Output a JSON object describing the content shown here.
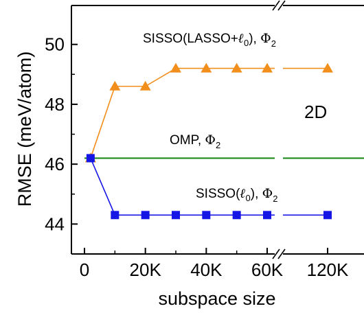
{
  "chart_data": {
    "type": "line",
    "xlabel": "subspace size",
    "ylabel": "RMSE (meV/atom)",
    "x_tick_labels": [
      "0",
      "20K",
      "40K",
      "60K",
      "120K"
    ],
    "y_tick_labels": [
      "44",
      "46",
      "48",
      "50"
    ],
    "ylim": [
      43.0,
      51.3
    ],
    "x_axis_break": "between 60K and 120K",
    "grid": false,
    "panel_label": "2D",
    "series": [
      {
        "name": "SISSO(LASSO+ℓ0), Φ2",
        "label_parts": {
          "pre": "SISSO(LASSO+",
          "ell": "ℓ",
          "ell_sub": "0",
          "post": "), ",
          "phi": "Φ",
          "phi_sub": "2"
        },
        "color": "#f28e1c",
        "marker": "triangle",
        "x": [
          2000,
          10000,
          20000,
          30000,
          40000,
          50000,
          60000,
          120000
        ],
        "values": [
          46.2,
          48.6,
          48.6,
          49.2,
          49.2,
          49.2,
          49.2,
          49.2
        ]
      },
      {
        "name": "OMP, Φ2",
        "label_parts": {
          "pre": "OMP, ",
          "phi": "Φ",
          "phi_sub": "2"
        },
        "color": "#1e8a1e",
        "marker": "none",
        "x": [
          0,
          135000
        ],
        "values": [
          46.2,
          46.2
        ]
      },
      {
        "name": "SISSO(ℓ0), Φ2",
        "label_parts": {
          "pre": "SISSO(",
          "ell": "ℓ",
          "ell_sub": "0",
          "post": "), ",
          "phi": "Φ",
          "phi_sub": "2"
        },
        "color": "#1515e6",
        "marker": "square",
        "x": [
          2000,
          10000,
          20000,
          30000,
          40000,
          50000,
          60000,
          120000
        ],
        "values": [
          46.2,
          44.3,
          44.3,
          44.3,
          44.3,
          44.3,
          44.3,
          44.3
        ]
      }
    ]
  }
}
